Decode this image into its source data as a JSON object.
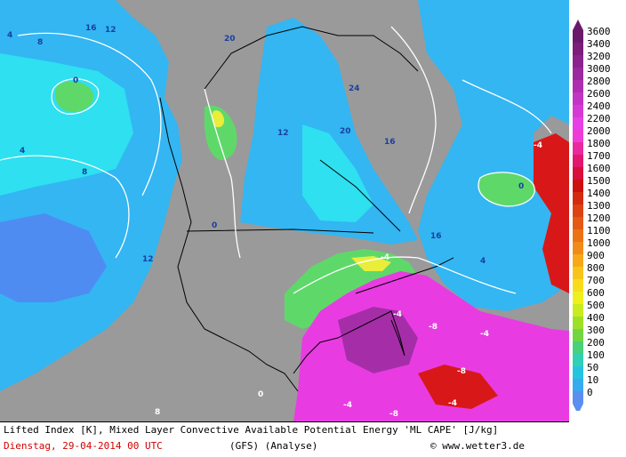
{
  "title": "Lifted Index [K], Mixed Layer Convective Available Potential Energy 'ML CAPE' [J/kg]",
  "date": "Dienstag, 29-04-2014  00 UTC",
  "model": "(GFS)  (Analyse)",
  "credit": "© www.wetter3.de",
  "legend": {
    "levels": [
      {
        "label": "3600",
        "color": "#6a1a6a"
      },
      {
        "label": "3400",
        "color": "#7a1e7a"
      },
      {
        "label": "3200",
        "color": "#8a238c"
      },
      {
        "label": "3000",
        "color": "#9a289e"
      },
      {
        "label": "2800",
        "color": "#ad2eb0"
      },
      {
        "label": "2600",
        "color": "#c235c4"
      },
      {
        "label": "2400",
        "color": "#d63ad6"
      },
      {
        "label": "2200",
        "color": "#e640e6"
      },
      {
        "label": "2000",
        "color": "#ee3cd6"
      },
      {
        "label": "1800",
        "color": "#e92a9e"
      },
      {
        "label": "1700",
        "color": "#e2186e"
      },
      {
        "label": "1600",
        "color": "#d80e3c"
      },
      {
        "label": "1500",
        "color": "#cc1010"
      },
      {
        "label": "1400",
        "color": "#d42a10"
      },
      {
        "label": "1300",
        "color": "#dc4212"
      },
      {
        "label": "1200",
        "color": "#e45a14"
      },
      {
        "label": "1100",
        "color": "#ec7216"
      },
      {
        "label": "1000",
        "color": "#f28a18"
      },
      {
        "label": "900",
        "color": "#f6a81a"
      },
      {
        "label": "800",
        "color": "#f8c41c"
      },
      {
        "label": "700",
        "color": "#f8dc1c"
      },
      {
        "label": "600",
        "color": "#eef01e"
      },
      {
        "label": "500",
        "color": "#c8ec20"
      },
      {
        "label": "400",
        "color": "#9ee028"
      },
      {
        "label": "300",
        "color": "#72d640"
      },
      {
        "label": "200",
        "color": "#48d07a"
      },
      {
        "label": "100",
        "color": "#30d0b6"
      },
      {
        "label": "50",
        "color": "#24c4e0"
      },
      {
        "label": "10",
        "color": "#38aaf0"
      },
      {
        "label": "0",
        "color": "#5a8ef0"
      }
    ],
    "top_arrow_color": "#6a1a6a",
    "bottom_arrow_color": "#5a8ef0"
  },
  "map_labels": [
    {
      "text": "4"
    },
    {
      "text": "8"
    },
    {
      "text": "12"
    },
    {
      "text": "16"
    },
    {
      "text": "20"
    },
    {
      "text": "24"
    },
    {
      "text": "0"
    },
    {
      "text": "-4"
    },
    {
      "text": "-8"
    }
  ],
  "colors": {
    "land_gray": "#9a9a9a",
    "cape_light_blue": "#2ee0f0",
    "cape_blue": "#33b6f2",
    "cape_deep_blue": "#4e8cf2",
    "cape_green": "#5fd86a",
    "cape_yellow": "#e8ee3a",
    "cape_magenta": "#e83ce2",
    "cape_red": "#d81818"
  }
}
